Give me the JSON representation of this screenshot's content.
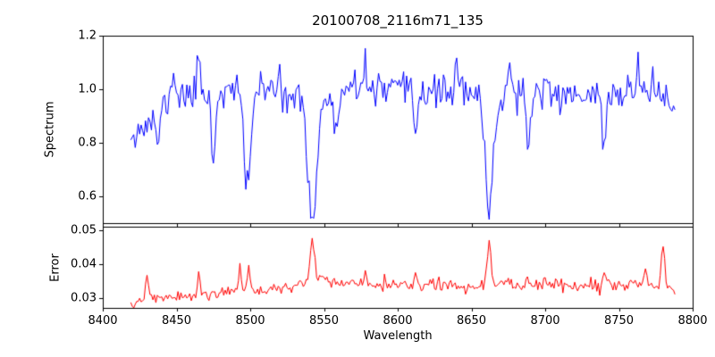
{
  "chart_data": {
    "type": "line",
    "title": "20100708_2116m71_135",
    "xlabel": "Wavelength",
    "xlim": [
      8400,
      8800
    ],
    "x_ticks": [
      "8400",
      "8450",
      "8500",
      "8550",
      "8600",
      "8650",
      "8700",
      "8750",
      "8800"
    ],
    "grid": false,
    "legend": "none",
    "panels": {
      "top": {
        "ylabel": "Spectrum",
        "ylim": [
          0.5,
          1.2
        ],
        "y_ticks": [
          "0.6",
          "0.8",
          "1.0",
          "1.2"
        ],
        "series": {
          "name": "spectrum",
          "color": "#0000ff",
          "x_start": 8419,
          "x_end": 8788,
          "step": 1.0,
          "seed": 11,
          "noise_sigma": 0.03,
          "anchors": [
            [
              8419,
              0.845
            ],
            [
              8428,
              0.855
            ],
            [
              8436,
              0.9
            ],
            [
              8444,
              0.955
            ],
            [
              8452,
              0.975
            ],
            [
              8470,
              0.985
            ],
            [
              8500,
              1.0
            ],
            [
              8540,
              0.985
            ],
            [
              8580,
              0.995
            ],
            [
              8620,
              0.99
            ],
            [
              8660,
              0.99
            ],
            [
              8700,
              0.98
            ],
            [
              8740,
              0.98
            ],
            [
              8770,
              0.99
            ],
            [
              8788,
              0.935
            ]
          ],
          "features": [
            [
              8448,
              0.1,
              1.2
            ],
            [
              8465,
              0.15,
              1.0
            ],
            [
              8520,
              0.09,
              1.0
            ],
            [
              8578,
              0.12,
              1.0
            ],
            [
              8640,
              0.13,
              1.0
            ],
            [
              8676,
              0.16,
              1.0
            ],
            [
              8700,
              0.08,
              1.0
            ],
            [
              8763,
              0.13,
              1.0
            ],
            [
              8773,
              0.1,
              1.0
            ],
            [
              8437,
              -0.1,
              1.5
            ],
            [
              8475,
              -0.26,
              1.3
            ],
            [
              8498,
              -0.37,
              2.2
            ],
            [
              8542,
              -0.42,
              3.0
            ],
            [
              8542,
              -0.04,
              10
            ],
            [
              8558,
              -0.16,
              1.5
            ],
            [
              8612,
              -0.14,
              1.2
            ],
            [
              8662,
              -0.38,
              2.5
            ],
            [
              8662,
              -0.05,
              8
            ],
            [
              8688,
              -0.21,
              1.5
            ],
            [
              8740,
              -0.17,
              1.5
            ]
          ],
          "absorption_line_minima": {
            "8498": 0.62,
            "8542": 0.52,
            "8662": 0.56
          }
        }
      },
      "bottom": {
        "ylabel": "Error",
        "ylim": [
          0.027,
          0.051
        ],
        "y_ticks": [
          "0.03",
          "0.04",
          "0.05"
        ],
        "series": {
          "name": "error",
          "color": "#ff0000",
          "x_start": 8419,
          "x_end": 8788,
          "step": 1.0,
          "seed": 5,
          "noise_sigma": 0.0009,
          "anchors": [
            [
              8419,
              0.0285
            ],
            [
              8430,
              0.0295
            ],
            [
              8450,
              0.03
            ],
            [
              8480,
              0.0315
            ],
            [
              8500,
              0.032
            ],
            [
              8530,
              0.0335
            ],
            [
              8545,
              0.0355
            ],
            [
              8560,
              0.0345
            ],
            [
              8600,
              0.034
            ],
            [
              8640,
              0.0335
            ],
            [
              8660,
              0.034
            ],
            [
              8700,
              0.034
            ],
            [
              8730,
              0.0335
            ],
            [
              8760,
              0.034
            ],
            [
              8780,
              0.0335
            ],
            [
              8788,
              0.032
            ]
          ],
          "features": [
            [
              8430,
              0.007,
              0.8
            ],
            [
              8465,
              0.006,
              0.8
            ],
            [
              8493,
              0.008,
              0.8
            ],
            [
              8499,
              0.007,
              1.0
            ],
            [
              8542,
              0.012,
              1.5
            ],
            [
              8578,
              0.003,
              0.8
            ],
            [
              8612,
              0.003,
              0.8
            ],
            [
              8662,
              0.013,
              1.2
            ],
            [
              8688,
              0.004,
              0.8
            ],
            [
              8740,
              0.004,
              0.8
            ],
            [
              8768,
              0.006,
              0.8
            ],
            [
              8780,
              0.012,
              1.0
            ]
          ],
          "error_peak_maxima": {
            "8542": 0.05,
            "8662": 0.048,
            "8780": 0.047
          }
        }
      }
    },
    "frame_color": "#000000",
    "background_color": "#ffffff"
  }
}
